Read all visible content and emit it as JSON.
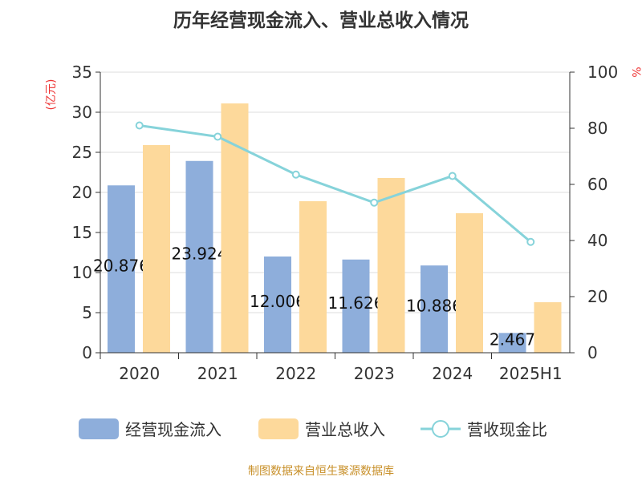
{
  "chart_data": {
    "type": "bar",
    "title": "历年经营现金流入、营业总收入情况",
    "ylabel": "(亿元)",
    "y2label": "%",
    "ylim": [
      0,
      35
    ],
    "y2lim": [
      0,
      100
    ],
    "yticks": [
      "0",
      "5",
      "10",
      "15",
      "20",
      "25",
      "30",
      "35"
    ],
    "y2ticks": [
      "0",
      "20",
      "40",
      "60",
      "80",
      "100"
    ],
    "categories": [
      "2020",
      "2021",
      "2022",
      "2023",
      "2024",
      "2025H1"
    ],
    "series": [
      {
        "name": "经营现金流入",
        "type": "bar",
        "color": "#8eaedb",
        "values": [
          20.876,
          23.924,
          12.006,
          11.626,
          10.886,
          2.467
        ],
        "labels": [
          "20.876",
          "23.924",
          "12.006",
          "11.626",
          "10.886",
          "2.467"
        ]
      },
      {
        "name": "营业总收入",
        "type": "bar",
        "color": "#fdd99b",
        "values": [
          25.9,
          31.1,
          18.9,
          21.8,
          17.4,
          6.3
        ]
      },
      {
        "name": "营收现金比",
        "type": "line",
        "axis": "right",
        "color": "#86d3da",
        "values": [
          81,
          77,
          63.5,
          53.5,
          63,
          39.5
        ]
      }
    ],
    "legend": "bottom",
    "grid": true
  },
  "source": "制图数据来自恒生聚源数据库"
}
